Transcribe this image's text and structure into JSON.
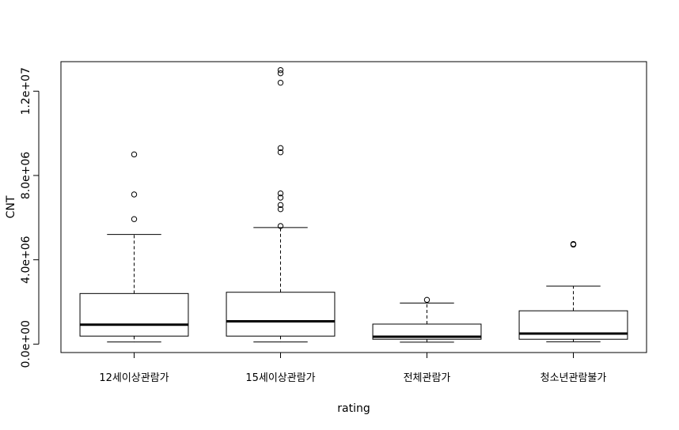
{
  "chart_data": {
    "type": "boxplot",
    "xlabel": "rating",
    "ylabel": "CNT",
    "ylim": [
      -400000,
      13400000
    ],
    "y_ticks": [
      0,
      4000000,
      8000000,
      12000000
    ],
    "y_tick_labels": [
      "0.0e+00",
      "4.0e+06",
      "8.0e+06",
      "1.2e+07"
    ],
    "categories": [
      "12세이상관람가",
      "15세이상관람가",
      "전체관람가",
      "청소년관람불가"
    ],
    "boxes": [
      {
        "name": "12세이상관람가",
        "whisker_low": 100000,
        "q1": 380000,
        "median": 920000,
        "q3": 2400000,
        "whisker_high": 5200000,
        "outliers": [
          5930000,
          7100000,
          9000000
        ]
      },
      {
        "name": "15세이상관람가",
        "whisker_low": 100000,
        "q1": 380000,
        "median": 1080000,
        "q3": 2460000,
        "whisker_high": 5530000,
        "outliers": [
          5600000,
          6400000,
          6600000,
          6950000,
          7150000,
          9100000,
          9300000,
          12400000,
          12850000,
          13000000
        ]
      },
      {
        "name": "전체관람가",
        "whisker_low": 90000,
        "q1": 230000,
        "median": 350000,
        "q3": 950000,
        "whisker_high": 1950000,
        "outliers": [
          2100000
        ]
      },
      {
        "name": "청소년관람불가",
        "whisker_low": 110000,
        "q1": 230000,
        "median": 500000,
        "q3": 1580000,
        "whisker_high": 2750000,
        "outliers": [
          4720000,
          4750000
        ]
      }
    ]
  }
}
